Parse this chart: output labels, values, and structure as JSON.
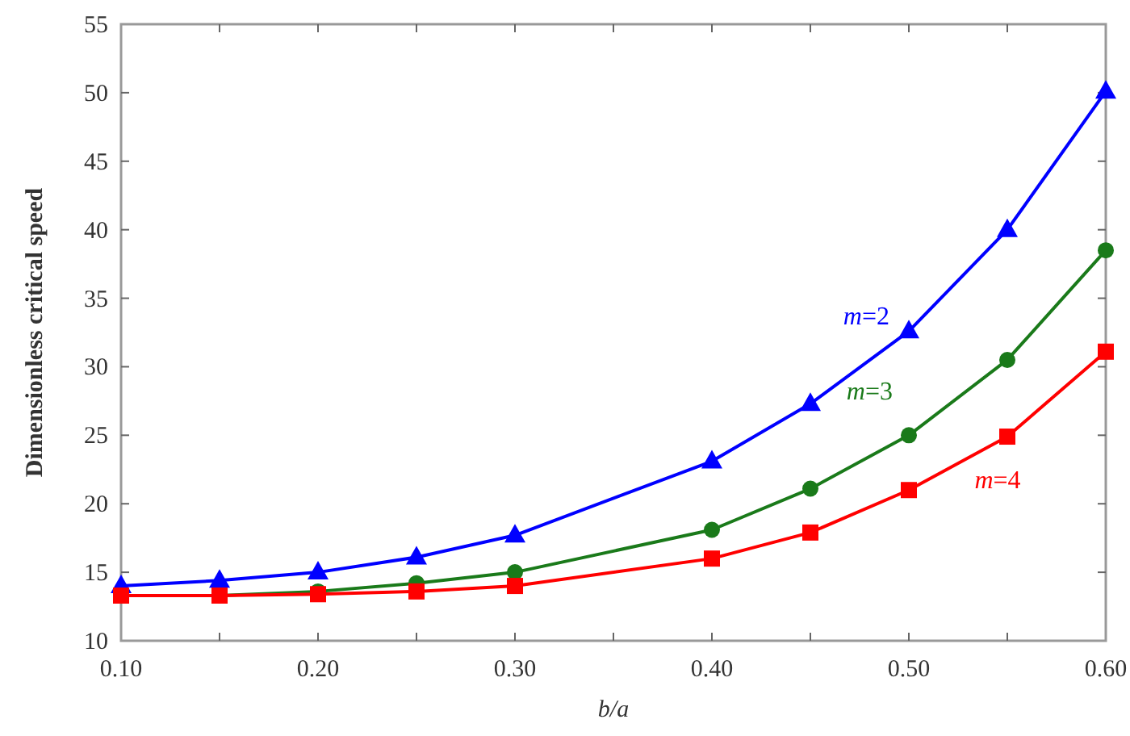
{
  "chart_data": {
    "type": "line",
    "xlabel": "b/a",
    "ylabel": "Dimensionless critical speed",
    "x": [
      0.1,
      0.15,
      0.2,
      0.25,
      0.3,
      0.4,
      0.45,
      0.5,
      0.55,
      0.6
    ],
    "series": [
      {
        "name": "m=2",
        "color": "#0000ff",
        "marker": "triangle",
        "values": [
          14.0,
          14.4,
          15.0,
          16.1,
          17.7,
          23.1,
          27.3,
          32.6,
          40.0,
          50.1
        ]
      },
      {
        "name": "m=3",
        "color": "#1a7a1a",
        "marker": "circle",
        "values": [
          13.3,
          13.3,
          13.6,
          14.2,
          15.0,
          18.1,
          21.1,
          25.0,
          30.5,
          38.5
        ]
      },
      {
        "name": "m=4",
        "color": "#ff0000",
        "marker": "square",
        "values": [
          13.3,
          13.3,
          13.4,
          13.6,
          14.0,
          16.0,
          17.9,
          21.0,
          24.9,
          31.1
        ]
      }
    ],
    "xlim": [
      0.1,
      0.6
    ],
    "xticks": [
      {
        "value": 0.1,
        "label": "0.10"
      },
      {
        "value": 0.15,
        "label": null
      },
      {
        "value": 0.2,
        "label": "0.20"
      },
      {
        "value": 0.25,
        "label": null
      },
      {
        "value": 0.3,
        "label": "0.30"
      },
      {
        "value": 0.35,
        "label": null
      },
      {
        "value": 0.4,
        "label": "0.40"
      },
      {
        "value": 0.45,
        "label": null
      },
      {
        "value": 0.5,
        "label": "0.50"
      },
      {
        "value": 0.55,
        "label": null
      },
      {
        "value": 0.6,
        "label": "0.60"
      }
    ],
    "ylim": [
      10,
      55
    ],
    "yticks": [
      10,
      15,
      20,
      25,
      30,
      35,
      40,
      45,
      50,
      55
    ],
    "grid": false,
    "line_style": "solid"
  }
}
